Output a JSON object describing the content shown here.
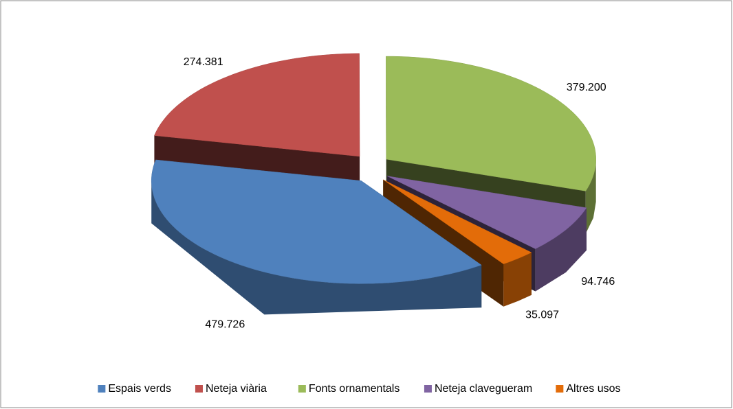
{
  "chart_data": {
    "type": "pie3d",
    "categories": [
      "Espais verds",
      "Neteja viària",
      "Fonts ornamentals",
      "Neteja clavegueram",
      "Altres usos"
    ],
    "values": [
      479726,
      274381,
      379200,
      94746,
      35097
    ],
    "value_labels": [
      "479.726",
      "274.381",
      "379.200",
      "94.746",
      "35.097"
    ],
    "colors": [
      "#4f81bd",
      "#c0504d",
      "#9bbb59",
      "#8064a2",
      "#e36c09"
    ],
    "legend": "bottom"
  }
}
